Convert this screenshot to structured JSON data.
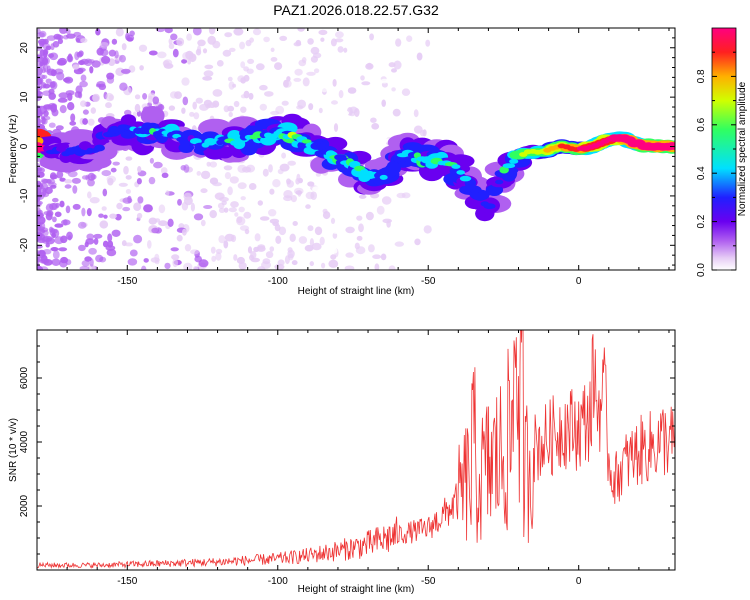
{
  "figure_title": "PAZ1.2026.018.22.57.G32",
  "chart_data": [
    {
      "type": "heatmap",
      "title": "PAZ1.2026.018.22.57.G32",
      "xlabel": "Height of straight line (km)",
      "ylabel": "Frequency (Hz)",
      "xlim": [
        -180,
        32
      ],
      "ylim": [
        -25,
        24
      ],
      "xticks": [
        -150,
        -100,
        -50,
        0
      ],
      "yticks": [
        -20,
        -10,
        0,
        10,
        20
      ],
      "xtick_labels": [
        "-150",
        "-100",
        "-50",
        "0"
      ],
      "ytick_labels": [
        "-20",
        "-10",
        "0",
        "10",
        "20"
      ],
      "colorbar_label": "Normalized spectral amplitude",
      "colorbar_ticks": [
        0.0,
        0.2,
        0.4,
        0.6,
        0.8
      ],
      "colorbar_tick_labels": [
        "0.0",
        "0.2",
        "0.4",
        "0.6",
        "0.8"
      ],
      "colormap": [
        "#ffffff",
        "#e6ccf5",
        "#b060f0",
        "#6a00f0",
        "#2020ff",
        "#00e0ff",
        "#30ff60",
        "#d0ff00",
        "#ffb000",
        "#ff2020",
        "#ff0080"
      ],
      "ridge": [
        {
          "x": -178,
          "f": -0.5,
          "a": 0.35
        },
        {
          "x": -170,
          "f": -1.0,
          "a": 0.35
        },
        {
          "x": -160,
          "f": -0.5,
          "a": 0.35
        },
        {
          "x": -155,
          "f": 3.5,
          "a": 0.35
        },
        {
          "x": -145,
          "f": 3.5,
          "a": 0.45
        },
        {
          "x": -135,
          "f": 2.5,
          "a": 0.4
        },
        {
          "x": -125,
          "f": 0.5,
          "a": 0.4
        },
        {
          "x": -115,
          "f": 1.0,
          "a": 0.45
        },
        {
          "x": -105,
          "f": 2.5,
          "a": 0.5
        },
        {
          "x": -95,
          "f": 2.0,
          "a": 0.5
        },
        {
          "x": -88,
          "f": 0.0,
          "a": 0.45
        },
        {
          "x": -80,
          "f": -2.0,
          "a": 0.5
        },
        {
          "x": -72,
          "f": -5.0,
          "a": 0.5
        },
        {
          "x": -65,
          "f": -6.0,
          "a": 0.45
        },
        {
          "x": -58,
          "f": -1.0,
          "a": 0.45
        },
        {
          "x": -50,
          "f": -3.0,
          "a": 0.5
        },
        {
          "x": -43,
          "f": -3.0,
          "a": 0.45
        },
        {
          "x": -38,
          "f": -6.5,
          "a": 0.4
        },
        {
          "x": -30,
          "f": -13.0,
          "a": 0.35
        },
        {
          "x": -25,
          "f": -5.0,
          "a": 0.45
        },
        {
          "x": -20,
          "f": -1.5,
          "a": 0.55
        },
        {
          "x": -12,
          "f": -1.0,
          "a": 0.65
        },
        {
          "x": -5,
          "f": 0.0,
          "a": 0.75
        },
        {
          "x": 0,
          "f": -0.5,
          "a": 0.8
        },
        {
          "x": 5,
          "f": 0.0,
          "a": 0.85
        },
        {
          "x": 10,
          "f": 1.5,
          "a": 0.9
        },
        {
          "x": 15,
          "f": 1.5,
          "a": 0.95
        },
        {
          "x": 20,
          "f": 0.5,
          "a": 0.98
        },
        {
          "x": 25,
          "f": 0.0,
          "a": 1.0
        },
        {
          "x": 32,
          "f": 0.0,
          "a": 1.0
        }
      ]
    },
    {
      "type": "line",
      "xlabel": "Height of straight line (km)",
      "ylabel": "SNR (10 * v/v)",
      "xlim": [
        -180,
        32
      ],
      "ylim": [
        0,
        7500
      ],
      "xticks": [
        -150,
        -100,
        -50,
        0
      ],
      "yticks": [
        2000,
        4000,
        6000
      ],
      "xtick_labels": [
        "-150",
        "-100",
        "-50",
        "0"
      ],
      "ytick_labels": [
        "2000",
        "4000",
        "6000"
      ],
      "color": "#ee3333",
      "series_envelope": {
        "x": [
          -180,
          -160,
          -140,
          -120,
          -100,
          -90,
          -80,
          -70,
          -60,
          -50,
          -45,
          -40,
          -37,
          -35,
          -30,
          -25,
          -22,
          -20,
          -18,
          -15,
          -10,
          -5,
          0,
          5,
          8,
          10,
          12,
          15,
          20,
          25,
          28,
          32
        ],
        "y": [
          150,
          150,
          200,
          250,
          350,
          450,
          600,
          800,
          1100,
          1300,
          1700,
          2200,
          2800,
          2500,
          3200,
          3600,
          4300,
          3900,
          3000,
          3800,
          4100,
          4500,
          4400,
          5000,
          5300,
          3400,
          2800,
          3300,
          3700,
          3900,
          4100,
          4000
        ]
      },
      "peaks": [
        {
          "x": -35,
          "y": 4400
        },
        {
          "x": -21,
          "y": 7500
        },
        {
          "x": -19,
          "y": 6100
        },
        {
          "x": 5,
          "y": 6000
        },
        {
          "x": 9,
          "y": 5100
        }
      ]
    }
  ]
}
